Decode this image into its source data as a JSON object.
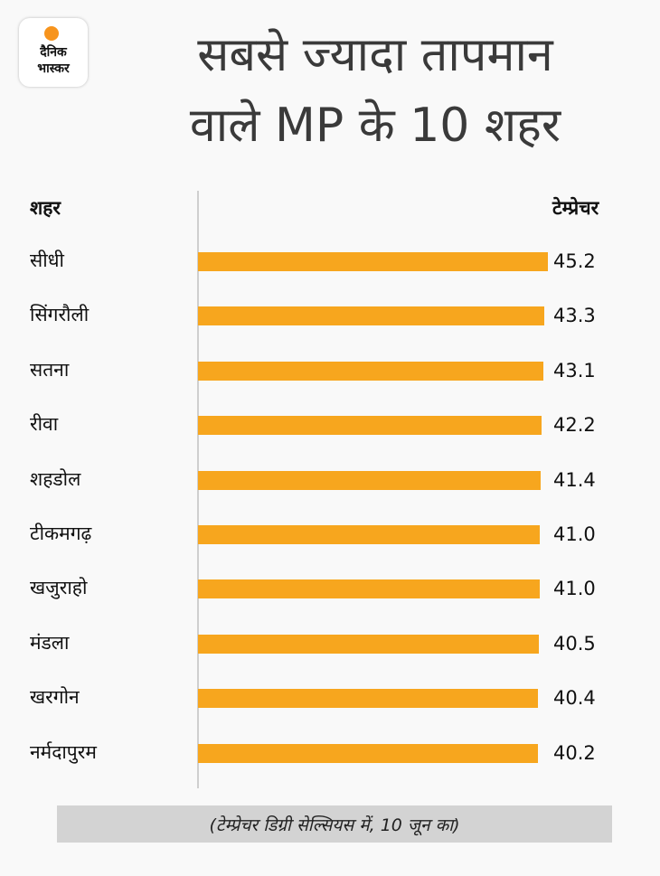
{
  "brand": {
    "line1": "दैनिक",
    "line2": "भास्कर",
    "accent_color": "#f7941d"
  },
  "title_lines": [
    "सबसे ज्यादा तापमान",
    "वाले MP के 10 शहर"
  ],
  "chart_data": {
    "type": "bar",
    "orientation": "horizontal",
    "title": "सबसे ज्यादा तापमान वाले MP के 10 शहर",
    "category_header": "शहर",
    "value_header": "टेम्प्रेचर",
    "categories": [
      "सीधी",
      "सिंगरौली",
      "सतना",
      "रीवा",
      "शहडोल",
      "टीकमगढ़",
      "खजुराहो",
      "मंडला",
      "खरगोन",
      "नर्मदापुरम"
    ],
    "values": [
      45.2,
      43.3,
      43.1,
      42.2,
      41.4,
      41.0,
      41.0,
      40.5,
      40.4,
      40.2
    ],
    "value_labels": [
      "45.2",
      "43.3",
      "43.1",
      "42.2",
      "41.4",
      "41.0",
      "41.0",
      "40.5",
      "40.4",
      "40.2"
    ],
    "bar_color": "#f7a61e",
    "unit_note": "(टेम्प्रेचर डिग्री सेल्सियस में, 10 जून का)",
    "grid": false,
    "legend": "none"
  }
}
